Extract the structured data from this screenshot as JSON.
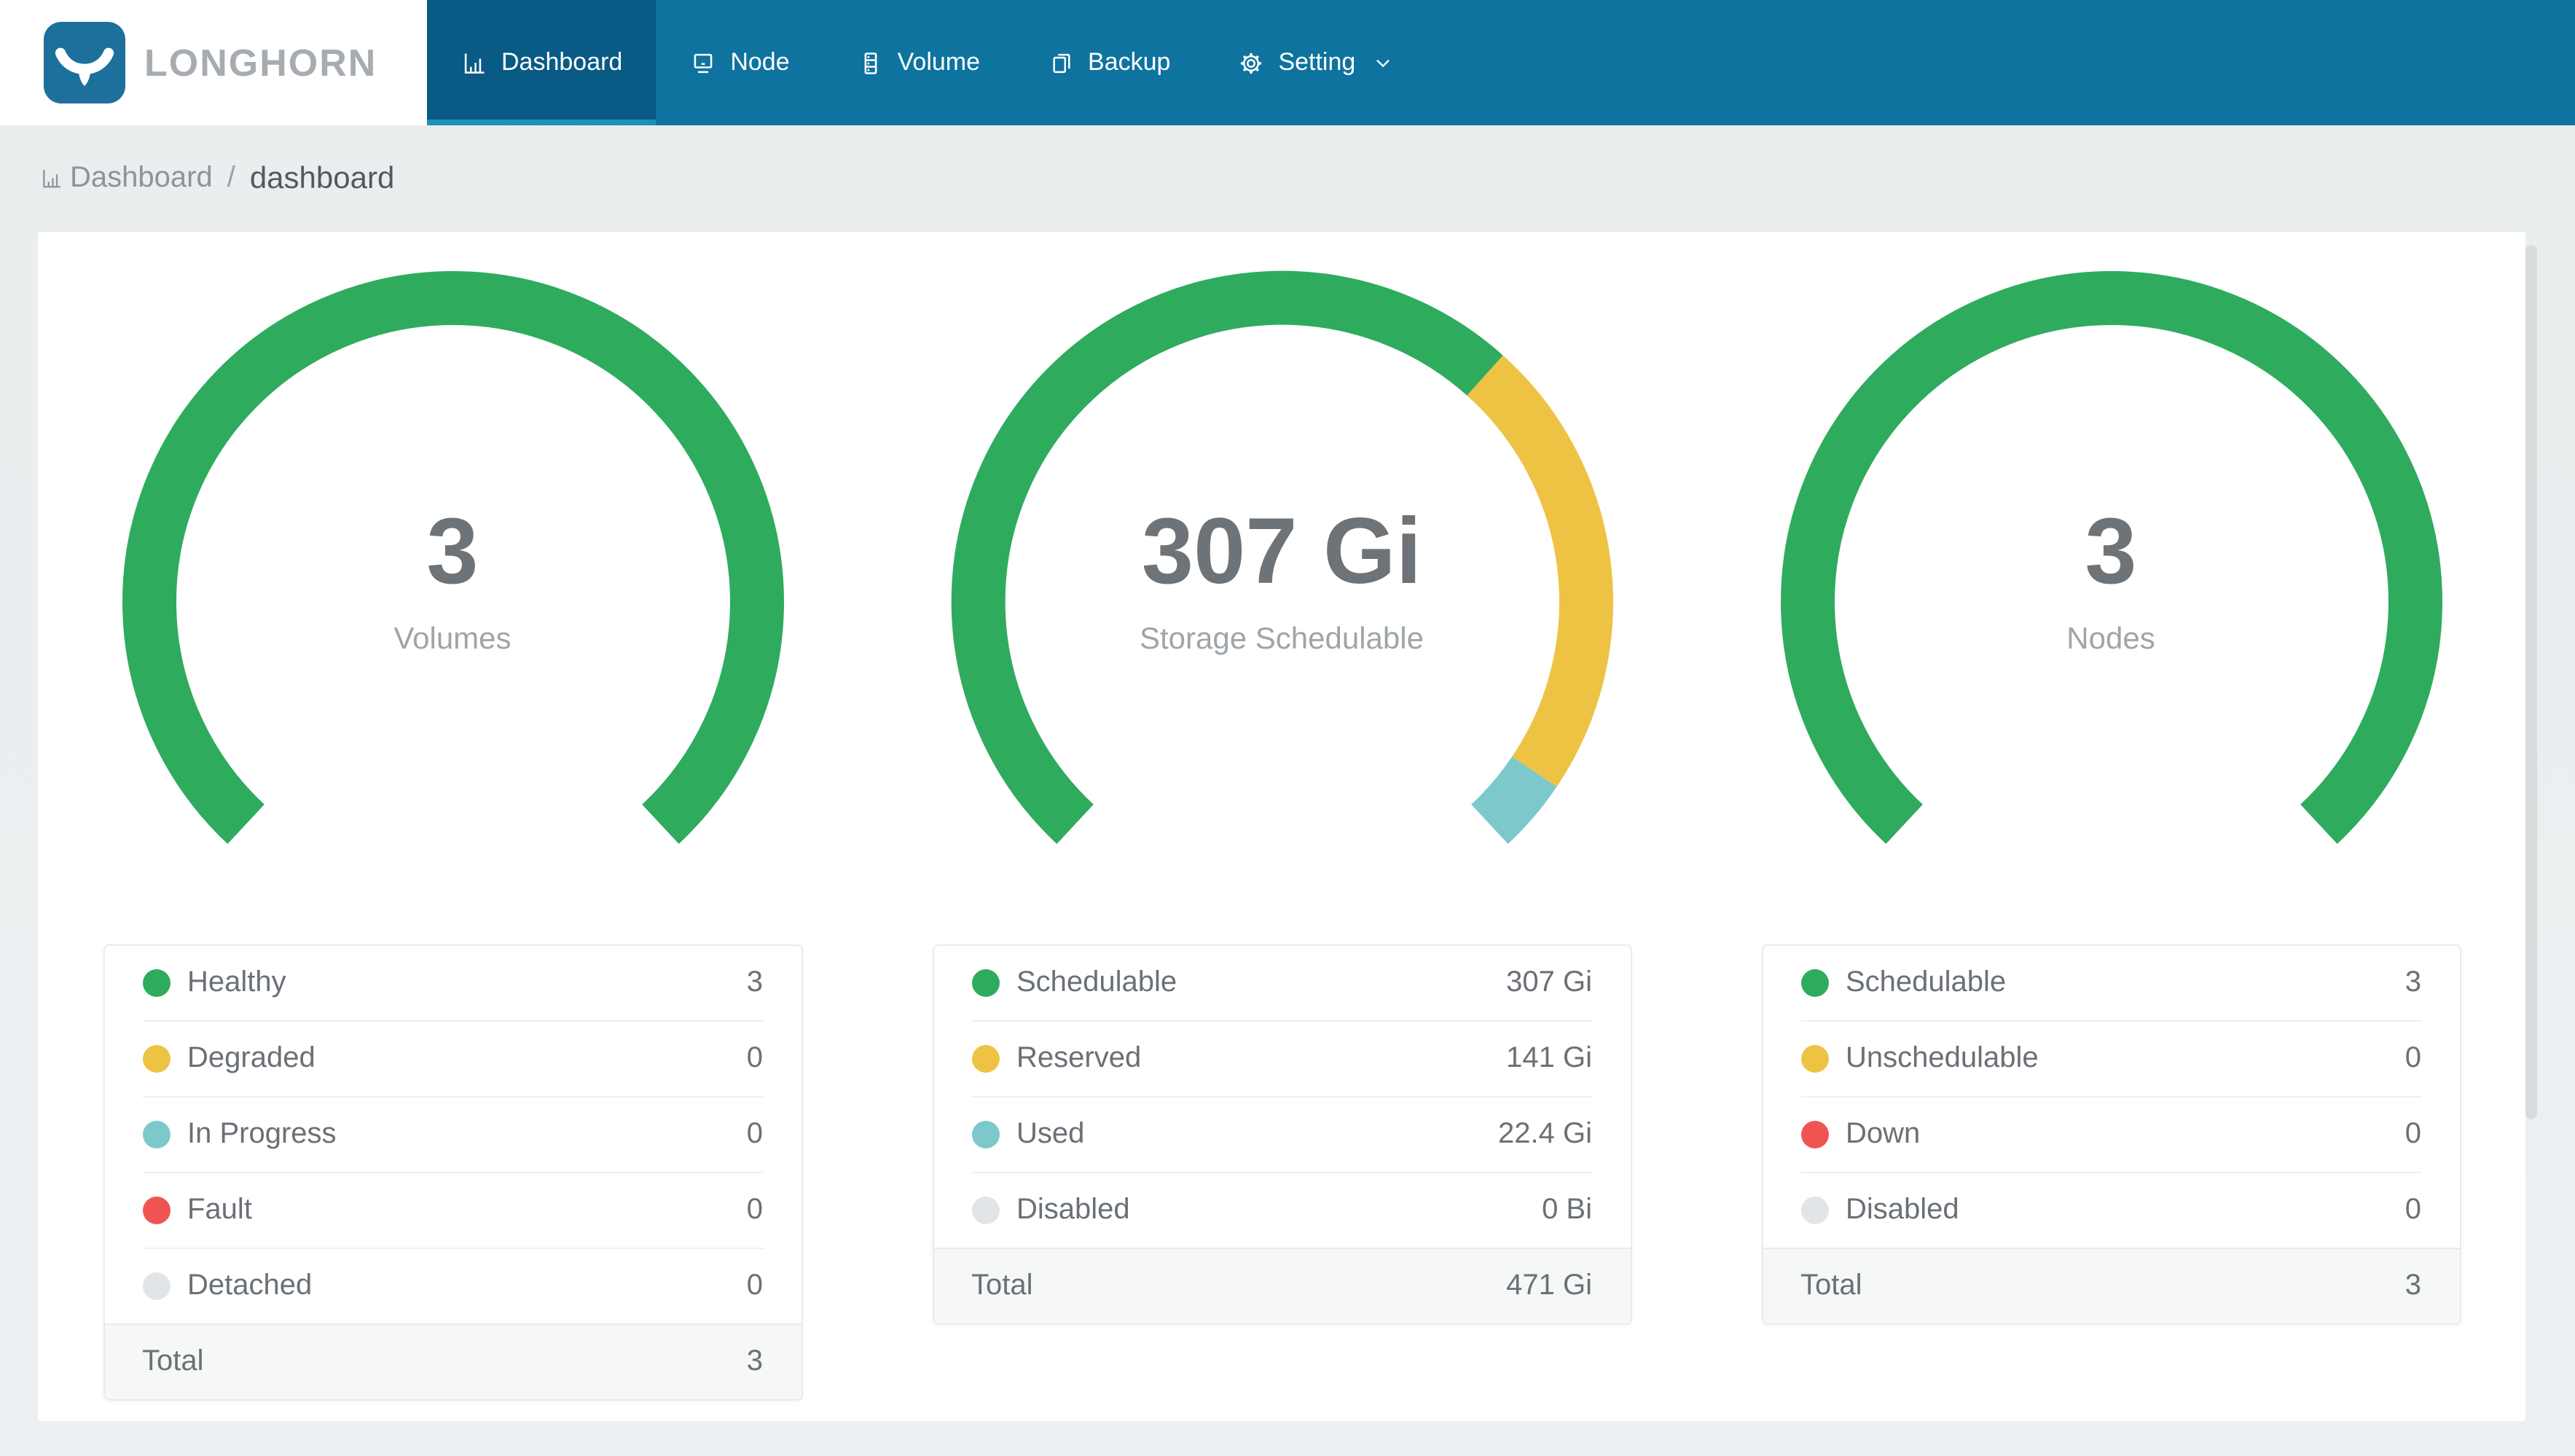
{
  "brand": {
    "name": "LONGHORN"
  },
  "nav": {
    "items": [
      {
        "label": "Dashboard",
        "icon": "bar-chart-icon",
        "active": true
      },
      {
        "label": "Node",
        "icon": "laptop-icon",
        "active": false
      },
      {
        "label": "Volume",
        "icon": "server-icon",
        "active": false
      },
      {
        "label": "Backup",
        "icon": "copy-icon",
        "active": false
      },
      {
        "label": "Setting",
        "icon": "gear-icon",
        "active": false,
        "has_dropdown": true
      }
    ]
  },
  "breadcrumb": {
    "section": "Dashboard",
    "separator": "/",
    "page": "dashboard"
  },
  "colors": {
    "navbar": "#0e739f",
    "navbar_active_tab": "#095a85",
    "navbar_active_underline": "#1e8fb8",
    "logo_box": "#1d6f9c",
    "page_background": "#ebeef0",
    "green": "#2fab5e",
    "yellow": "#eec344",
    "teal": "#7dc8cb",
    "red": "#ef5452",
    "gray": "#e2e5e7",
    "number_text": "#6e7377",
    "label_text": "#9ea5aa",
    "legend_text": "#6a7076",
    "total_row_bg": "#f6f7f7"
  },
  "chart_data": [
    {
      "type": "gauge",
      "title": "Volumes",
      "center_value": "3",
      "start_angle": 223,
      "sweep": 274,
      "segments": [
        {
          "label": "Healthy",
          "value": 3,
          "color": "#2fab5e"
        },
        {
          "label": "Degraded",
          "value": 0,
          "color": "#eec344"
        },
        {
          "label": "In Progress",
          "value": 0,
          "color": "#7dc8cb"
        },
        {
          "label": "Fault",
          "value": 0,
          "color": "#ef5452"
        },
        {
          "label": "Detached",
          "value": 0,
          "color": "#e2e5e7"
        }
      ],
      "total": 3
    },
    {
      "type": "gauge",
      "title": "Storage Schedulable",
      "center_value": "307 Gi",
      "start_angle": 223,
      "sweep": 274,
      "segments": [
        {
          "label": "Schedulable",
          "value": 307,
          "color": "#2fab5e"
        },
        {
          "label": "Reserved",
          "value": 141,
          "color": "#eec344"
        },
        {
          "label": "Used",
          "value": 22.4,
          "color": "#7dc8cb"
        },
        {
          "label": "Disabled",
          "value": 0,
          "color": "#e2e5e7"
        }
      ],
      "total": "471 Gi"
    },
    {
      "type": "gauge",
      "title": "Nodes",
      "center_value": "3",
      "start_angle": 223,
      "sweep": 274,
      "segments": [
        {
          "label": "Schedulable",
          "value": 3,
          "color": "#2fab5e"
        },
        {
          "label": "Unschedulable",
          "value": 0,
          "color": "#eec344"
        },
        {
          "label": "Down",
          "value": 0,
          "color": "#ef5452"
        },
        {
          "label": "Disabled",
          "value": 0,
          "color": "#e2e5e7"
        }
      ],
      "total": 3
    }
  ],
  "panels": [
    {
      "center_value": "3",
      "center_label": "Volumes",
      "rows": [
        {
          "label": "Healthy",
          "value": "3"
        },
        {
          "label": "Degraded",
          "value": "0"
        },
        {
          "label": "In Progress",
          "value": "0"
        },
        {
          "label": "Fault",
          "value": "0"
        },
        {
          "label": "Detached",
          "value": "0"
        }
      ],
      "total_label": "Total",
      "total_value": "3"
    },
    {
      "center_value": "307 Gi",
      "center_label": "Storage Schedulable",
      "rows": [
        {
          "label": "Schedulable",
          "value": "307 Gi"
        },
        {
          "label": "Reserved",
          "value": "141 Gi"
        },
        {
          "label": "Used",
          "value": "22.4 Gi"
        },
        {
          "label": "Disabled",
          "value": "0 Bi"
        }
      ],
      "total_label": "Total",
      "total_value": "471 Gi"
    },
    {
      "center_value": "3",
      "center_label": "Nodes",
      "rows": [
        {
          "label": "Schedulable",
          "value": "3"
        },
        {
          "label": "Unschedulable",
          "value": "0"
        },
        {
          "label": "Down",
          "value": "0"
        },
        {
          "label": "Disabled",
          "value": "0"
        }
      ],
      "total_label": "Total",
      "total_value": "3"
    }
  ]
}
